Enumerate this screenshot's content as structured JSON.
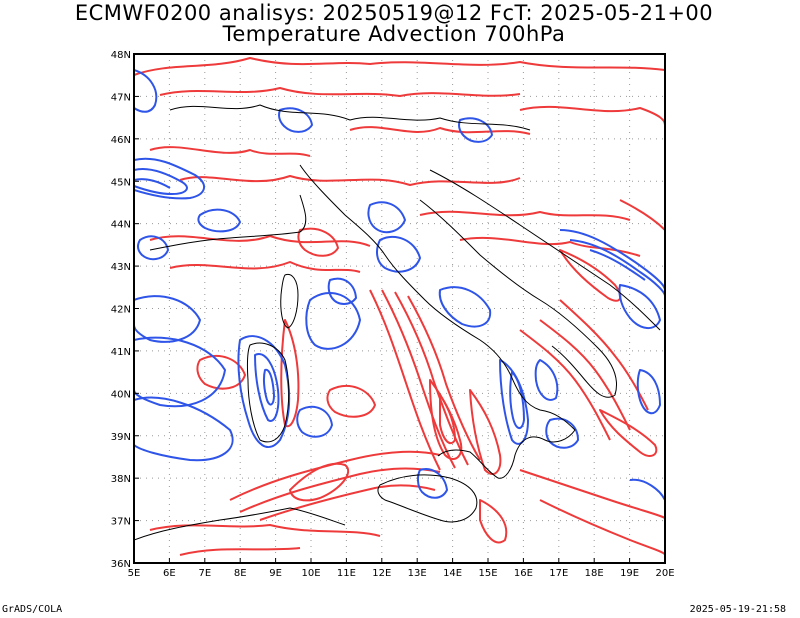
{
  "title_line1": "ECMWF0200 analisys: 20250519@12 FcT: 2025-05-21+00",
  "title_line2": "Temperature Advection 700hPa",
  "footer_left": "GrADS/COLA",
  "footer_right": "2025-05-19-21:58",
  "map": {
    "lon_labels": [
      "5E",
      "6E",
      "7E",
      "8E",
      "9E",
      "10E",
      "11E",
      "12E",
      "13E",
      "14E",
      "15E",
      "16E",
      "17E",
      "18E",
      "19E",
      "20E"
    ],
    "lat_labels": [
      "48N",
      "47N",
      "46N",
      "45N",
      "44N",
      "43N",
      "42N",
      "41N",
      "40N",
      "39N",
      "38N",
      "37N",
      "36N"
    ],
    "lon_range": [
      5,
      20
    ],
    "lat_range": [
      36,
      48
    ],
    "grid": "dotted",
    "positive_contour_color": "#ee3a3a",
    "negative_contour_color": "#2f55e8",
    "coastline_color": "#000000"
  }
}
